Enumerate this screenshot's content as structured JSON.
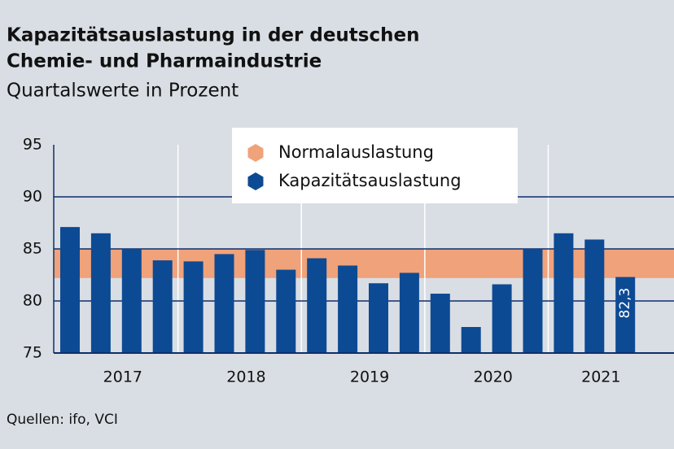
{
  "chart_data": {
    "type": "bar",
    "title": [
      "Kapazitätsauslastung in der deutschen",
      "Chemie- und Pharmaindustrie"
    ],
    "subtitle": "Quartalswerte in Prozent",
    "source": "Quellen: ifo, VCI",
    "categories": [
      "2017",
      "2017",
      "2017",
      "2017",
      "2018",
      "2018",
      "2018",
      "2018",
      "2019",
      "2019",
      "2019",
      "2019",
      "2020",
      "2020",
      "2020",
      "2020",
      "2021",
      "2021",
      "2021"
    ],
    "series": [
      {
        "name": "Normalauslastung",
        "color": "#f0a27a",
        "range": [
          82.2,
          85
        ]
      },
      {
        "name": "Kapazitätsauslastung",
        "color": "#0d4a94",
        "values": [
          87.1,
          86.5,
          85.0,
          83.9,
          83.8,
          84.5,
          84.9,
          83.0,
          84.1,
          83.4,
          81.7,
          82.7,
          80.7,
          77.5,
          81.6,
          85.0,
          86.5,
          85.9,
          82.3
        ],
        "value_labels": [
          null,
          null,
          null,
          null,
          null,
          null,
          null,
          null,
          null,
          null,
          null,
          null,
          null,
          null,
          null,
          null,
          null,
          null,
          "82,3"
        ]
      }
    ],
    "ylim": [
      75,
      95
    ],
    "yticks": [
      75,
      80,
      85,
      90,
      95
    ],
    "grid": true
  }
}
